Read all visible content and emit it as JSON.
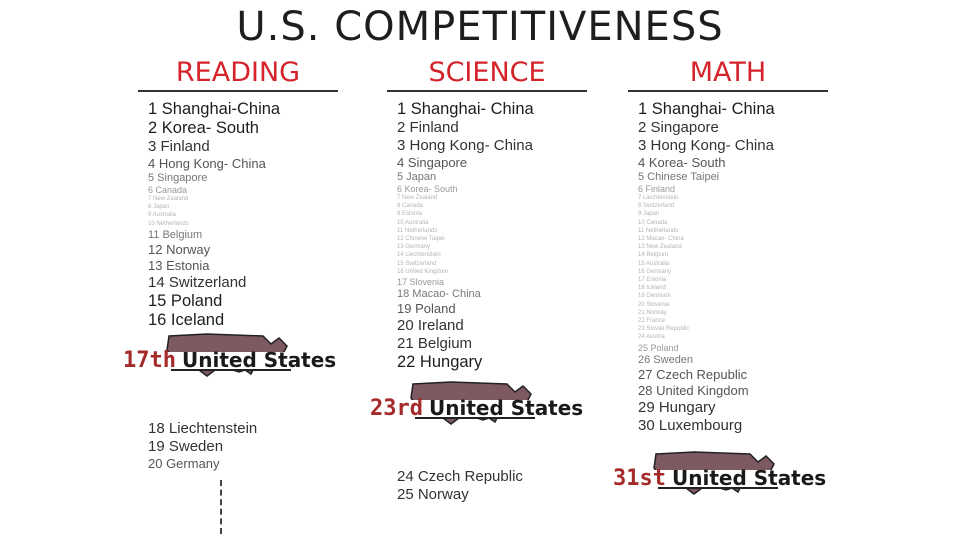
{
  "title": "U.S. COMPETITIVENESS",
  "columns": [
    {
      "heading": "READING",
      "items": [
        {
          "text": "1 Shanghai-China",
          "size": "xl"
        },
        {
          "text": "2 Korea- South",
          "size": "xl"
        },
        {
          "text": "3 Finland",
          "size": "l"
        },
        {
          "text": "4 Hong Kong- China",
          "size": "m"
        },
        {
          "text": "5 Singapore",
          "size": "s"
        },
        {
          "text": "6 Canada",
          "size": "xs"
        },
        {
          "text": "7 New Zealand",
          "size": "xxs"
        },
        {
          "text": "8 Japan",
          "size": "xxs"
        },
        {
          "text": "9 Australia",
          "size": "xxs"
        },
        {
          "text": "10 Netherlands",
          "size": "xxs"
        },
        {
          "text": "11 Belgium",
          "size": "s"
        },
        {
          "text": "12 Norway",
          "size": "m"
        },
        {
          "text": "13 Estonia",
          "size": "m"
        },
        {
          "text": "14 Switzerland",
          "size": "l"
        },
        {
          "text": "15 Poland",
          "size": "xl"
        },
        {
          "text": "16 Iceland",
          "size": "xl"
        }
      ],
      "us": {
        "rank": "17th",
        "label": "United States"
      },
      "after": [
        {
          "text": "18 Liechtenstein",
          "size": "l"
        },
        {
          "text": "19 Sweden",
          "size": "l"
        },
        {
          "text": "20 Germany",
          "size": "m"
        }
      ]
    },
    {
      "heading": "SCIENCE",
      "items": [
        {
          "text": "1 Shanghai- China",
          "size": "xl"
        },
        {
          "text": "2 Finland",
          "size": "l"
        },
        {
          "text": "3 Hong Kong- China",
          "size": "l"
        },
        {
          "text": "4 Singapore",
          "size": "m"
        },
        {
          "text": "5 Japan",
          "size": "s"
        },
        {
          "text": "6 Korea- South",
          "size": "xs"
        },
        {
          "text": "7 New Zealand",
          "size": "xxs"
        },
        {
          "text": "8 Canada",
          "size": "xxs"
        },
        {
          "text": "9 Estonia",
          "size": "xxs"
        },
        {
          "text": "10 Australia",
          "size": "xxs"
        },
        {
          "text": "11 Netherlands",
          "size": "xxs"
        },
        {
          "text": "12 Chinese Taipei",
          "size": "xxs"
        },
        {
          "text": "13 Germany",
          "size": "xxs"
        },
        {
          "text": "14 Liechtenstein",
          "size": "xxs"
        },
        {
          "text": "15 Switzerland",
          "size": "xxs"
        },
        {
          "text": "16 United Kingdom",
          "size": "xxs"
        },
        {
          "text": "17 Slovenia",
          "size": "xs"
        },
        {
          "text": "18 Macao- China",
          "size": "s"
        },
        {
          "text": "19 Poland",
          "size": "m"
        },
        {
          "text": "20 Ireland",
          "size": "l"
        },
        {
          "text": "21 Belgium",
          "size": "l"
        },
        {
          "text": "22 Hungary",
          "size": "xl"
        }
      ],
      "us": {
        "rank": "23rd",
        "label": "United States"
      },
      "after": [
        {
          "text": "24 Czech Republic",
          "size": "l"
        },
        {
          "text": "25 Norway",
          "size": "l"
        }
      ]
    },
    {
      "heading": "MATH",
      "items": [
        {
          "text": "1 Shanghai- China",
          "size": "xl"
        },
        {
          "text": "2 Singapore",
          "size": "l"
        },
        {
          "text": "3 Hong Kong- China",
          "size": "l"
        },
        {
          "text": "4 Korea- South",
          "size": "m"
        },
        {
          "text": "5 Chinese Taipei",
          "size": "s"
        },
        {
          "text": "6 Finland",
          "size": "xs"
        },
        {
          "text": "7 Liechtenstein",
          "size": "xxs"
        },
        {
          "text": "8 Switzerland",
          "size": "xxs"
        },
        {
          "text": "9 Japan",
          "size": "xxs"
        },
        {
          "text": "10 Canada",
          "size": "xxs"
        },
        {
          "text": "11 Netherlands",
          "size": "xxs"
        },
        {
          "text": "12 Macao- China",
          "size": "xxs"
        },
        {
          "text": "13 New Zealand",
          "size": "xxs"
        },
        {
          "text": "14 Belgium",
          "size": "xxs"
        },
        {
          "text": "15 Australia",
          "size": "xxs"
        },
        {
          "text": "16 Germany",
          "size": "xxs"
        },
        {
          "text": "17 Estonia",
          "size": "xxs"
        },
        {
          "text": "18 Iceland",
          "size": "xxs"
        },
        {
          "text": "19 Denmark",
          "size": "xxs"
        },
        {
          "text": "20 Slovenia",
          "size": "xxs"
        },
        {
          "text": "21 Norway",
          "size": "xxs"
        },
        {
          "text": "22 France",
          "size": "xxs"
        },
        {
          "text": "23 Slovak Republic",
          "size": "xxs"
        },
        {
          "text": "24 Austria",
          "size": "xxs"
        },
        {
          "text": "25 Poland",
          "size": "xs"
        },
        {
          "text": "26 Sweden",
          "size": "s"
        },
        {
          "text": "27 Czech Republic",
          "size": "m"
        },
        {
          "text": "28 United Kingdom",
          "size": "m"
        },
        {
          "text": "29 Hungary",
          "size": "l"
        },
        {
          "text": "30 Luxembourg",
          "size": "l"
        }
      ],
      "us": {
        "rank": "31st",
        "label": "United States"
      },
      "after": []
    }
  ],
  "colors": {
    "heading": "#d4232a",
    "rank_highlight": "#a52a2a",
    "map_fill": "#7d5961"
  }
}
